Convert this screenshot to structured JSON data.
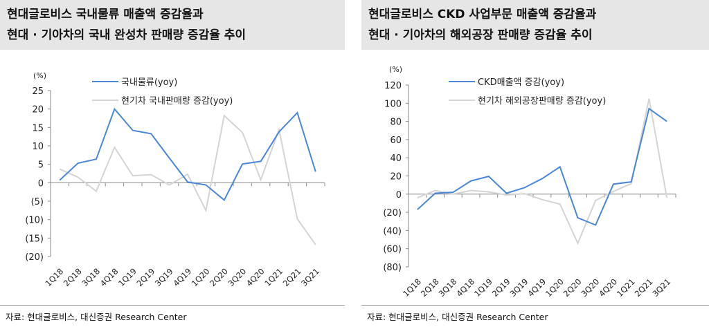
{
  "chart_data": [
    {
      "type": "line",
      "title": [
        "현대글로비스 국내물류 매출액 증감율과",
        "현대 · 기아차의 국내 완성차 판매량 증감율 추이"
      ],
      "ylabel": "(%)",
      "ylim": [
        -20,
        25
      ],
      "yticks": [
        25,
        20,
        15,
        10,
        5,
        0,
        -5,
        -10,
        -15,
        -20
      ],
      "ytick_labels": [
        "25",
        "20",
        "15",
        "10",
        "5",
        "0",
        "(5)",
        "(10)",
        "(15)",
        "(20)"
      ],
      "categories": [
        "1Q18",
        "2Q18",
        "3Q18",
        "4Q18",
        "1Q19",
        "2Q19",
        "3Q19",
        "4Q19",
        "1Q20",
        "2Q20",
        "3Q20",
        "4Q20",
        "1Q21",
        "2Q21",
        "3Q21"
      ],
      "series": [
        {
          "name": "국내물류(yoy)",
          "color": "#4a86d6",
          "values": [
            0.7,
            5.3,
            6.4,
            20,
            14.2,
            13.3,
            6.7,
            0.2,
            -0.6,
            -4.7,
            5.1,
            5.8,
            13.8,
            19,
            3.0
          ]
        },
        {
          "name": "현기차 국내판매량 증감(yoy)",
          "color": "#d4d4d4",
          "values": [
            3.7,
            1.5,
            -2.3,
            9.6,
            1.9,
            2.2,
            -0.6,
            2.3,
            -7.5,
            18.2,
            13.6,
            0.8,
            14.4,
            -9.8,
            -16.8
          ]
        }
      ],
      "legend": "top",
      "source": "자료: 현대글로비스, 대신증권 Research Center"
    },
    {
      "type": "line",
      "title": [
        "현대글로비스 CKD 사업부문 매출액 증감율과",
        "현대 · 기아차의 해외공장 판매량 증감율 추이"
      ],
      "ylabel": "(%)",
      "ylim": [
        -80,
        120
      ],
      "yticks": [
        120,
        100,
        80,
        60,
        40,
        20,
        0,
        -20,
        -40,
        -60,
        -80
      ],
      "ytick_labels": [
        "120",
        "100",
        "80",
        "60",
        "40",
        "20",
        "0",
        "(20)",
        "(40)",
        "(60)",
        "(80)"
      ],
      "categories": [
        "1Q18",
        "2Q18",
        "3Q18",
        "4Q18",
        "1Q19",
        "2Q19",
        "3Q19",
        "4Q19",
        "1Q20",
        "2Q20",
        "3Q20",
        "4Q20",
        "1Q21",
        "2Q21",
        "3Q21"
      ],
      "series": [
        {
          "name": "CKD매출액 증감(yoy)",
          "color": "#4a86d6",
          "values": [
            -17,
            1,
            2,
            14.5,
            19.5,
            1,
            7,
            17,
            30,
            -26,
            -34,
            11,
            13.5,
            94,
            80
          ]
        },
        {
          "name": "현기차 해외공장판매량 증감(yoy)",
          "color": "#d4d4d4",
          "values": [
            -4,
            4,
            0,
            4,
            2.5,
            -1,
            0.5,
            -6,
            -11,
            -54,
            -7,
            3,
            11.5,
            105,
            -4
          ]
        }
      ],
      "legend": "top",
      "source": "자료: 현대글로비스, 대신증권 Research Center"
    }
  ]
}
